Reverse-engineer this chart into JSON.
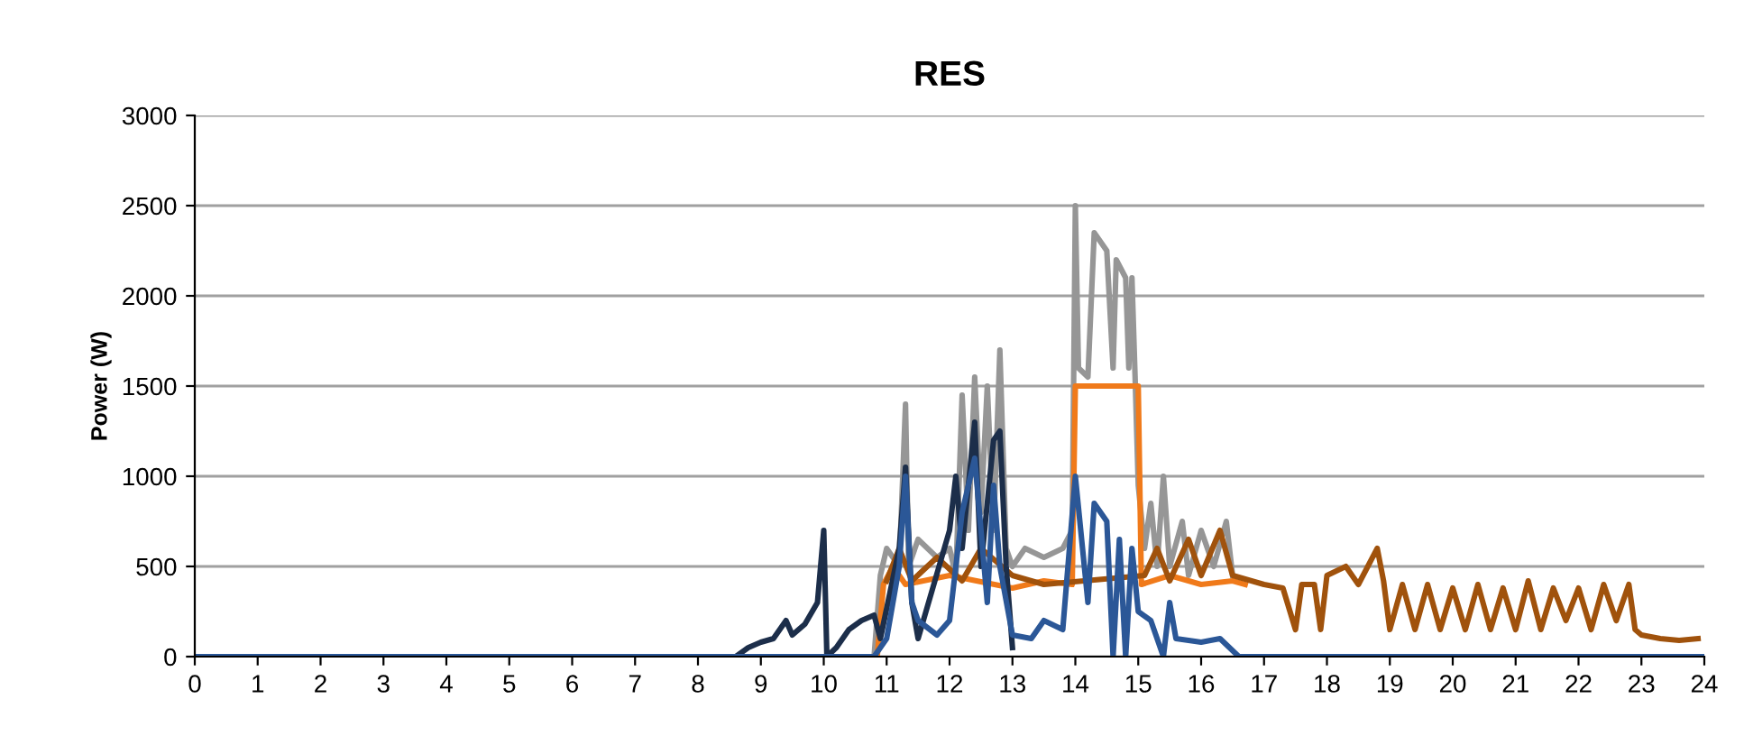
{
  "chart_data": {
    "type": "line",
    "title": "RES",
    "ylabel": "Power (W)",
    "xlim": [
      0,
      24
    ],
    "xticks": [
      0,
      1,
      2,
      3,
      4,
      5,
      6,
      7,
      8,
      9,
      10,
      11,
      12,
      13,
      14,
      15,
      16,
      17,
      18,
      19,
      20,
      21,
      22,
      23,
      24
    ],
    "ylim": [
      0,
      3000
    ],
    "yticks": [
      0,
      500,
      1000,
      1500,
      2000,
      2500,
      3000
    ],
    "grid": "y",
    "legend": false,
    "marker": "none",
    "line_style": "solid",
    "series": [
      {
        "color": "#969696",
        "x": [
          10.8,
          10.9,
          11.0,
          11.2,
          11.3,
          11.35,
          11.5,
          11.8,
          12.0,
          12.1,
          12.2,
          12.3,
          12.4,
          12.5,
          12.6,
          12.7,
          12.8,
          12.9,
          13.0,
          13.2,
          13.5,
          13.8,
          13.95,
          14.0,
          14.05,
          14.2,
          14.3,
          14.5,
          14.6,
          14.65,
          14.8,
          14.85,
          14.9,
          14.95,
          15.0,
          15.1,
          15.2,
          15.3,
          15.4,
          15.5,
          15.7,
          15.8,
          16.0,
          16.2,
          16.4,
          16.5
        ],
        "values": [
          0,
          450,
          600,
          500,
          1400,
          500,
          650,
          550,
          600,
          450,
          1450,
          700,
          1550,
          800,
          1500,
          700,
          1700,
          600,
          500,
          600,
          550,
          600,
          700,
          2500,
          1600,
          1550,
          2350,
          2250,
          1600,
          2200,
          2100,
          1600,
          2100,
          1550,
          950,
          600,
          850,
          500,
          1000,
          500,
          750,
          450,
          700,
          500,
          750,
          450
        ]
      },
      {
        "color": "#f07a1a",
        "x": [
          9,
          10.85,
          10.95,
          11.1,
          11.3,
          12,
          13,
          13.5,
          13.95,
          14.0,
          15.0,
          15.05,
          15.5,
          16,
          16.5,
          16.7
        ],
        "values": [
          0,
          0,
          400,
          500,
          400,
          450,
          380,
          420,
          400,
          1500,
          1500,
          400,
          450,
          400,
          420,
          400
        ]
      },
      {
        "color": "#a0520c",
        "x": [
          11.0,
          11.2,
          11.4,
          11.8,
          12.2,
          12.5,
          13,
          13.5,
          15.1,
          15.3,
          15.5,
          15.8,
          16.0,
          16.3,
          16.5,
          16.8,
          17,
          17.3,
          17.5,
          17.6,
          17.8,
          17.9,
          18.0,
          18.3,
          18.5,
          18.8,
          18.9,
          19.0,
          19.2,
          19.4,
          19.6,
          19.8,
          20.0,
          20.2,
          20.4,
          20.6,
          20.8,
          21.0,
          21.2,
          21.4,
          21.6,
          21.8,
          22.0,
          22.2,
          22.4,
          22.6,
          22.8,
          22.9,
          23.0,
          23.3,
          23.6,
          23.9
        ],
        "values": [
          420,
          600,
          420,
          550,
          420,
          600,
          450,
          400,
          450,
          600,
          420,
          650,
          450,
          700,
          450,
          420,
          400,
          380,
          150,
          400,
          400,
          150,
          450,
          500,
          400,
          600,
          420,
          150,
          400,
          150,
          400,
          150,
          380,
          150,
          400,
          150,
          380,
          150,
          420,
          150,
          380,
          200,
          380,
          150,
          400,
          200,
          400,
          150,
          120,
          100,
          90,
          100
        ]
      },
      {
        "color": "#1c2e4a",
        "x": [
          8.6,
          8.8,
          9.0,
          9.2,
          9.4,
          9.5,
          9.7,
          9.9,
          10.0,
          10.05,
          10.2,
          10.4,
          10.6,
          10.8,
          10.9,
          11.2,
          11.3,
          11.4,
          11.5,
          12.0,
          12.1,
          12.2,
          12.4,
          12.5,
          12.7,
          12.8,
          12.9,
          13.0
        ],
        "values": [
          0,
          50,
          80,
          100,
          200,
          120,
          180,
          300,
          700,
          0,
          50,
          150,
          200,
          230,
          100,
          600,
          1050,
          300,
          100,
          700,
          1000,
          600,
          1300,
          500,
          1200,
          1250,
          500,
          50
        ]
      },
      {
        "color": "#2b5797",
        "x": [
          0,
          10.8,
          11.0,
          11.2,
          11.3,
          11.4,
          11.5,
          11.8,
          12.0,
          12.2,
          12.4,
          12.6,
          12.7,
          12.8,
          13.0,
          13.3,
          13.5,
          13.8,
          14.0,
          14.2,
          14.3,
          14.5,
          14.6,
          14.7,
          14.8,
          14.9,
          15.0,
          15.2,
          15.4,
          15.5,
          15.6,
          16.0,
          16.3,
          16.6,
          24
        ],
        "values": [
          0,
          0,
          100,
          500,
          1000,
          300,
          200,
          120,
          200,
          800,
          1100,
          300,
          950,
          500,
          120,
          100,
          200,
          150,
          1000,
          300,
          850,
          750,
          0,
          650,
          0,
          600,
          250,
          200,
          0,
          300,
          100,
          80,
          100,
          0,
          0
        ]
      }
    ]
  }
}
